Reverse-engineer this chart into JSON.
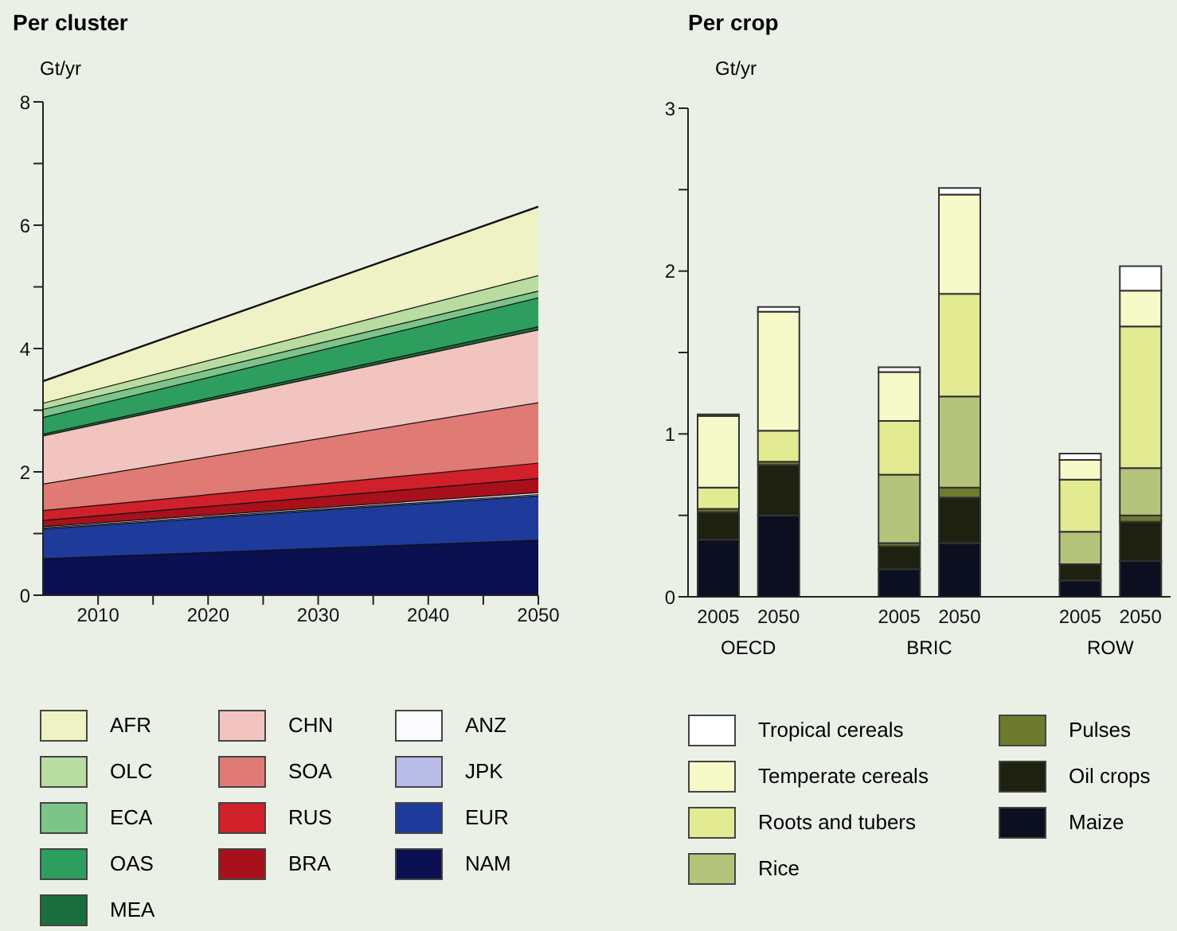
{
  "chart_data": [
    {
      "type": "area",
      "title": "Per cluster",
      "ylabel": "Gt/yr",
      "stacked": true,
      "x": [
        2005,
        2050
      ],
      "xlim": [
        2005,
        2050
      ],
      "xticks": [
        2010,
        {
          "value": 2015,
          "label": null
        },
        2020,
        {
          "value": 2025,
          "label": null
        },
        2030,
        {
          "value": 2035,
          "label": null
        },
        2040,
        {
          "value": 2045,
          "label": null
        },
        2050
      ],
      "ylim": [
        0,
        8
      ],
      "yticks": [
        0,
        {
          "value": 1,
          "label": null
        },
        2,
        {
          "value": 3,
          "label": null
        },
        4,
        {
          "value": 5,
          "label": null
        },
        6,
        {
          "value": 7,
          "label": null
        },
        8
      ],
      "legend": "bottom",
      "series": [
        {
          "name": "NAM",
          "color": "#0a1050",
          "values": [
            0.6,
            0.9
          ]
        },
        {
          "name": "EUR",
          "color": "#1e3a9a",
          "values": [
            0.48,
            0.72
          ]
        },
        {
          "name": "JPK",
          "color": "#b8bce6",
          "values": [
            0.02,
            0.02
          ]
        },
        {
          "name": "ANZ",
          "color": "#fcfcff",
          "values": [
            0.02,
            0.03
          ]
        },
        {
          "name": "BRA",
          "color": "#a8101c",
          "values": [
            0.1,
            0.23
          ]
        },
        {
          "name": "RUS",
          "color": "#d0202a",
          "values": [
            0.16,
            0.25
          ]
        },
        {
          "name": "SOA",
          "color": "#e07a74",
          "values": [
            0.43,
            0.98
          ]
        },
        {
          "name": "CHN",
          "color": "#f2c4c0",
          "values": [
            0.78,
            1.18
          ]
        },
        {
          "name": "MEA",
          "color": "#1a6e3e",
          "values": [
            0.03,
            0.05
          ]
        },
        {
          "name": "OAS",
          "color": "#2e9e5e",
          "values": [
            0.27,
            0.47
          ]
        },
        {
          "name": "ECA",
          "color": "#7cc48a",
          "values": [
            0.13,
            0.11
          ]
        },
        {
          "name": "OLC",
          "color": "#b9dca0",
          "values": [
            0.1,
            0.25
          ]
        },
        {
          "name": "AFR",
          "color": "#eef2c4",
          "values": [
            0.35,
            1.11
          ]
        }
      ]
    },
    {
      "type": "bar",
      "title": "Per crop",
      "ylabel": "Gt/yr",
      "stacked": true,
      "categories": [
        "2005",
        "2050",
        null,
        "2005",
        "2050",
        null,
        "2005",
        "2050"
      ],
      "annotations": [
        "OECD",
        "BRIC",
        "ROW"
      ],
      "ylim": [
        0,
        3
      ],
      "yticks": [
        0,
        {
          "value": 0.5,
          "label": null
        },
        1,
        {
          "value": 1.5,
          "label": null
        },
        2,
        {
          "value": 2.5,
          "label": null
        },
        3
      ],
      "legend": "bottom",
      "series": [
        {
          "name": "Maize",
          "color": "#0c0f20",
          "values": [
            0.35,
            0.5,
            null,
            0.17,
            0.33,
            null,
            0.1,
            0.22
          ]
        },
        {
          "name": "Oil crops",
          "color": "#1e2010",
          "values": [
            0.17,
            0.31,
            null,
            0.14,
            0.28,
            null,
            0.1,
            0.24
          ]
        },
        {
          "name": "Pulses",
          "color": "#6e7a2e",
          "values": [
            0.02,
            0.02,
            null,
            0.02,
            0.06,
            null,
            null,
            0.04
          ]
        },
        {
          "name": "Rice",
          "color": "#b4c47a",
          "values": [
            null,
            null,
            null,
            0.42,
            0.56,
            null,
            0.2,
            0.29
          ]
        },
        {
          "name": "Roots and tubers",
          "color": "#e2ea92",
          "values": [
            0.13,
            0.19,
            null,
            0.33,
            0.63,
            null,
            0.32,
            0.87
          ]
        },
        {
          "name": "Temperate cereals",
          "color": "#f6f9c8",
          "values": [
            0.44,
            0.73,
            null,
            0.3,
            0.61,
            null,
            0.12,
            0.22
          ]
        },
        {
          "name": "Tropical cereals",
          "color": "#ffffff",
          "values": [
            0.01,
            0.03,
            null,
            0.03,
            0.04,
            null,
            0.04,
            0.15
          ]
        }
      ]
    }
  ]
}
